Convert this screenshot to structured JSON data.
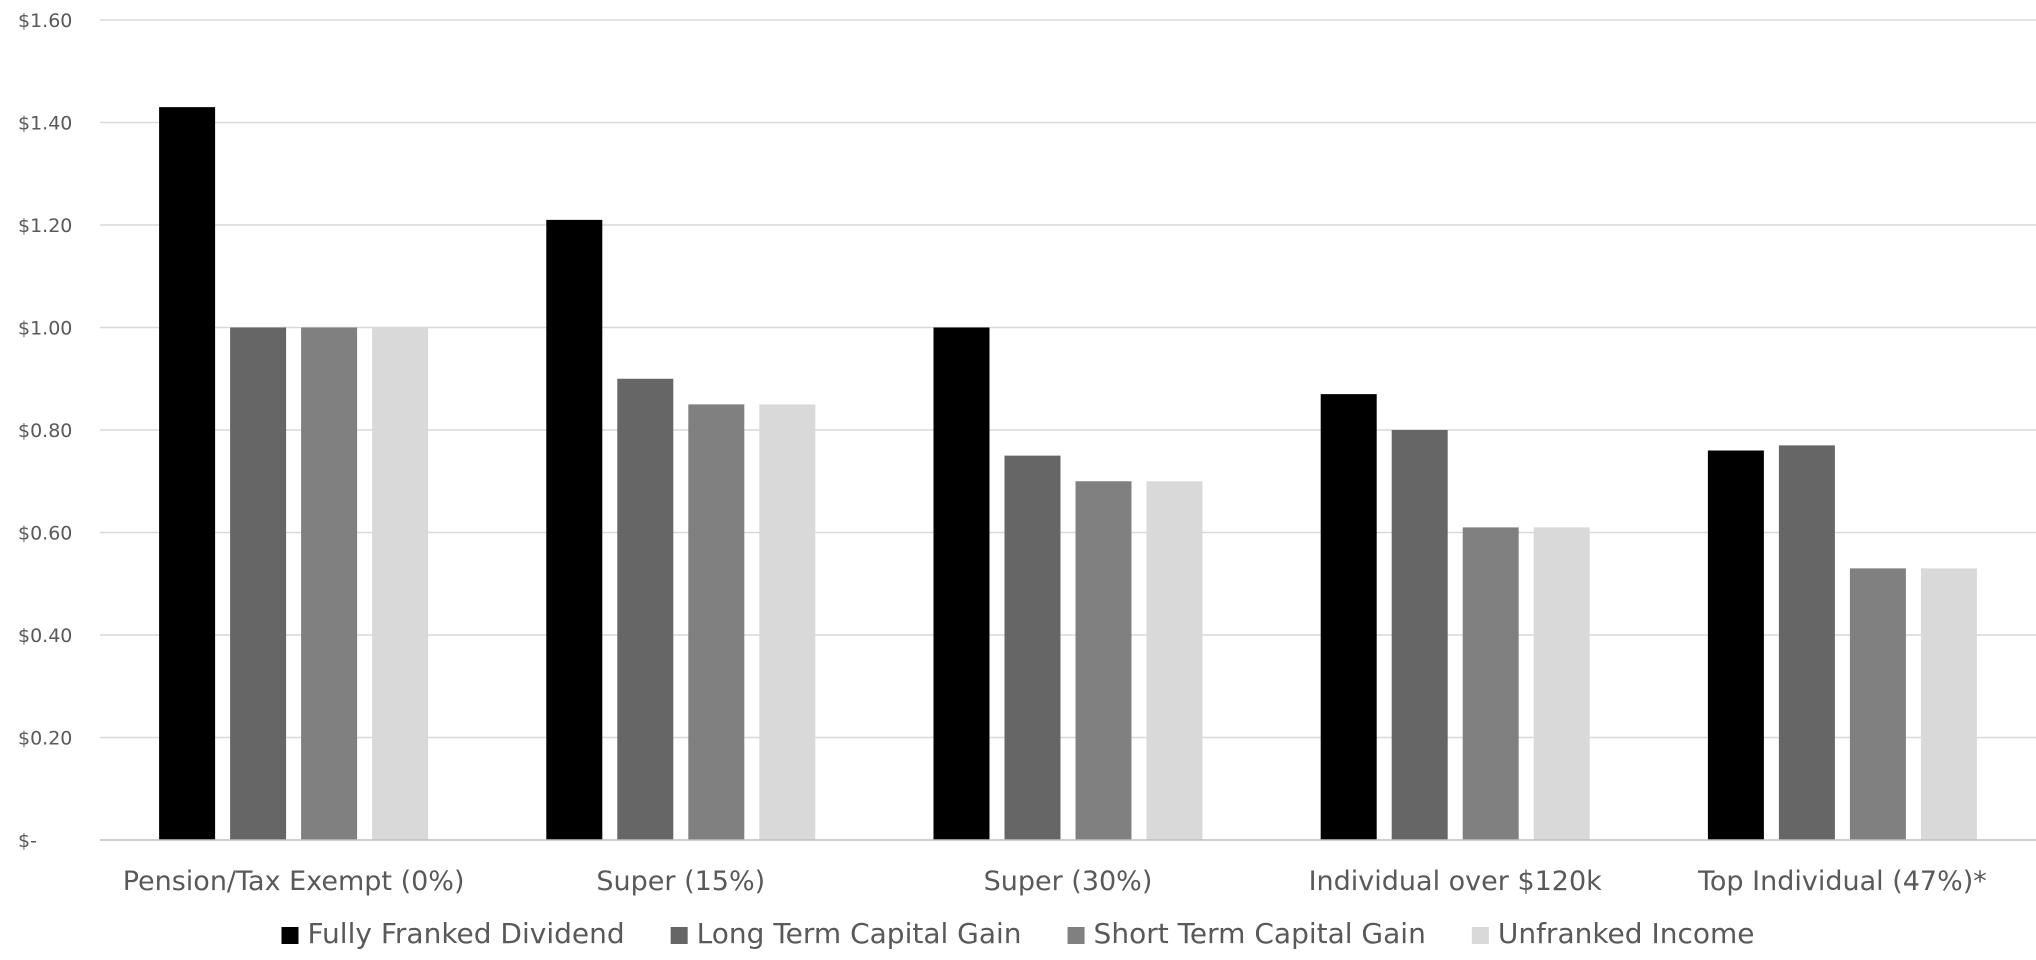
{
  "chart_data": {
    "type": "bar",
    "title": "",
    "xlabel": "",
    "ylabel": "",
    "categories": [
      "Pension/Tax Exempt (0%)",
      "Super (15%)",
      "Super (30%)",
      "Individual over $120k",
      "Top Individual (47%)*"
    ],
    "series": [
      {
        "name": "Fully Franked Dividend",
        "color": "#000000",
        "values": [
          1.43,
          1.21,
          1.0,
          0.87,
          0.76
        ]
      },
      {
        "name": "Long Term Capital Gain",
        "color": "#666666",
        "values": [
          1.0,
          0.9,
          0.75,
          0.8,
          0.77
        ]
      },
      {
        "name": "Short Term Capital Gain",
        "color": "#808080",
        "values": [
          1.0,
          0.85,
          0.7,
          0.61,
          0.53
        ]
      },
      {
        "name": "Unfranked Income",
        "color": "#d9d9d9",
        "values": [
          1.0,
          0.85,
          0.7,
          0.61,
          0.53
        ]
      }
    ],
    "ylim": [
      0,
      1.6
    ],
    "yticks": [
      0,
      0.2,
      0.4,
      0.6,
      0.8,
      1.0,
      1.2,
      1.4,
      1.6
    ],
    "ytick_labels": [
      "$-",
      "$0.20",
      "$0.40",
      "$0.60",
      "$0.80",
      "$1.00",
      "$1.20",
      "$1.40",
      "$1.60"
    ],
    "grid": true,
    "legend_position": "bottom",
    "colors": {
      "grid": "#d9d9d9",
      "axis": "#bfbfbf",
      "text": "#595959"
    }
  }
}
